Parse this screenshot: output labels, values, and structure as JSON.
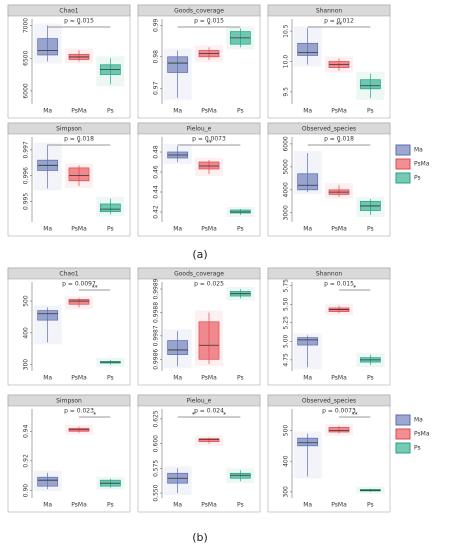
{
  "chart_data": [
    {
      "type": "box",
      "title": "Chao1",
      "annotation": "p = 0.015",
      "categories": [
        "Ma",
        "PsMa",
        "Ps"
      ],
      "colors": [
        "#5b6db0",
        "#e6444c",
        "#1ba584"
      ],
      "ylim": [
        5800,
        7100
      ],
      "yticks": [
        6000,
        6500,
        7000
      ],
      "boxes": [
        {
          "min": 6450,
          "q1": 6550,
          "median": 6620,
          "q3": 6800,
          "max": 7000
        },
        {
          "min": 6450,
          "q1": 6480,
          "median": 6520,
          "q3": 6560,
          "max": 6620
        },
        {
          "min": 6100,
          "q1": 6250,
          "median": 6330,
          "q3": 6400,
          "max": 6500
        }
      ],
      "significance": [
        {
          "label": "*",
          "from": 0,
          "to": 2
        }
      ]
    },
    {
      "type": "box",
      "title": "Goods_coverage",
      "annotation": "p = 0.015",
      "categories": [
        "Ma",
        "PsMa",
        "Ps"
      ],
      "colors": [
        "#5b6db0",
        "#e6444c",
        "#1ba584"
      ],
      "ylim": [
        0.965,
        0.992
      ],
      "yticks": [
        0.97,
        0.98,
        0.99
      ],
      "boxes": [
        {
          "min": 0.967,
          "q1": 0.975,
          "median": 0.978,
          "q3": 0.98,
          "max": 0.982
        },
        {
          "min": 0.979,
          "q1": 0.98,
          "median": 0.981,
          "q3": 0.982,
          "max": 0.983
        },
        {
          "min": 0.983,
          "q1": 0.984,
          "median": 0.986,
          "q3": 0.988,
          "max": 0.989
        }
      ],
      "significance": [
        {
          "label": "*",
          "from": 0,
          "to": 2
        }
      ]
    },
    {
      "type": "box",
      "title": "Shannon",
      "annotation": "p = 0.012",
      "categories": [
        "Ma",
        "PsMa",
        "Ps"
      ],
      "colors": [
        "#5b6db0",
        "#e6444c",
        "#1ba584"
      ],
      "ylim": [
        9.3,
        10.7
      ],
      "yticks": [
        9.5,
        {
          "value": 10,
          "label": "10.0"
        },
        10.5
      ],
      "boxes": [
        {
          "min": 9.95,
          "q1": 10.1,
          "median": 10.15,
          "q3": 10.3,
          "max": 10.55
        },
        {
          "min": 9.85,
          "q1": 9.9,
          "median": 9.95,
          "q3": 10.0,
          "max": 10.05
        },
        {
          "min": 9.4,
          "q1": 9.55,
          "median": 9.6,
          "q3": 9.7,
          "max": 9.8
        }
      ],
      "significance": [
        {
          "label": "**",
          "from": 0,
          "to": 2
        }
      ]
    },
    {
      "type": "box",
      "title": "Simpson",
      "annotation": "p = 0.018",
      "categories": [
        "Ma",
        "PsMa",
        "Ps"
      ],
      "colors": [
        "#5b6db0",
        "#e6444c",
        "#1ba584"
      ],
      "ylim": [
        0.9942,
        0.9975
      ],
      "yticks": [
        0.995,
        0.996,
        0.997
      ],
      "boxes": [
        {
          "min": 0.9955,
          "q1": 0.9962,
          "median": 0.9964,
          "q3": 0.9966,
          "max": 0.9972
        },
        {
          "min": 0.9956,
          "q1": 0.9958,
          "median": 0.996,
          "q3": 0.9963,
          "max": 0.9964
        },
        {
          "min": 0.9945,
          "q1": 0.9946,
          "median": 0.9947,
          "q3": 0.9949,
          "max": 0.9951
        }
      ],
      "significance": [
        {
          "label": "*",
          "from": 0,
          "to": 2
        }
      ]
    },
    {
      "type": "box",
      "title": "Pielou_e",
      "annotation": "p = 0.0073",
      "categories": [
        "Ma",
        "PsMa",
        "Ps"
      ],
      "colors": [
        "#5b6db0",
        "#e6444c",
        "#1ba584"
      ],
      "ylim": [
        0.41,
        0.495
      ],
      "yticks": [
        0.42,
        0.44,
        0.46,
        0.48
      ],
      "boxes": [
        {
          "min": 0.47,
          "q1": 0.474,
          "median": 0.477,
          "q3": 0.48,
          "max": 0.486
        },
        {
          "min": 0.458,
          "q1": 0.463,
          "median": 0.466,
          "q3": 0.47,
          "max": 0.472
        },
        {
          "min": 0.417,
          "q1": 0.419,
          "median": 0.42,
          "q3": 0.422,
          "max": 0.423
        }
      ],
      "significance": [
        {
          "label": "**",
          "from": 0,
          "to": 2
        }
      ]
    },
    {
      "type": "box",
      "title": "Observed_species",
      "annotation": "p = 0.018",
      "categories": [
        "Ma",
        "PsMa",
        "Ps"
      ],
      "colors": [
        "#5b6db0",
        "#e6444c",
        "#1ba584"
      ],
      "ylim": [
        2600,
        6300
      ],
      "yticks": [
        3000,
        4000,
        5000,
        6000
      ],
      "boxes": [
        {
          "min": 3900,
          "q1": 4000,
          "median": 4200,
          "q3": 4700,
          "max": 5600
        },
        {
          "min": 3700,
          "q1": 3800,
          "median": 3900,
          "q3": 4000,
          "max": 4200
        },
        {
          "min": 2900,
          "q1": 3100,
          "median": 3300,
          "q3": 3500,
          "max": 3600
        }
      ],
      "significance": [
        {
          "label": "*",
          "from": 0,
          "to": 2
        }
      ]
    },
    {
      "type": "box",
      "title": "Chao1",
      "annotation": "p = 0.0097",
      "categories": [
        "Ma",
        "PsMa",
        "Ps"
      ],
      "colors": [
        "#5b6db0",
        "#e6444c",
        "#1ba584"
      ],
      "ylim": [
        280,
        560
      ],
      "yticks": [
        300,
        400,
        500
      ],
      "boxes": [
        {
          "min": 370,
          "q1": 440,
          "median": 460,
          "q3": 470,
          "max": 480
        },
        {
          "min": 480,
          "q1": 490,
          "median": 500,
          "q3": 505,
          "max": 510
        },
        {
          "min": 300,
          "q1": 305,
          "median": 308,
          "q3": 310,
          "max": 315
        }
      ],
      "significance": [
        {
          "label": "**",
          "from": 1,
          "to": 2
        }
      ]
    },
    {
      "type": "box",
      "title": "Goods_coverage",
      "annotation": "p = 0.025",
      "categories": [
        "Ma",
        "PsMa",
        "Ps"
      ],
      "colors": [
        "#5b6db0",
        "#e6444c",
        "#1ba584"
      ],
      "ylim": [
        0.99855,
        0.99893
      ],
      "yticks": [
        0.9986,
        0.9987,
        0.9988,
        0.9989
      ],
      "boxes": [
        {
          "min": 0.99857,
          "q1": 0.99862,
          "median": 0.99864,
          "q3": 0.99868,
          "max": 0.99872
        },
        {
          "min": 0.99858,
          "q1": 0.9986,
          "median": 0.99866,
          "q3": 0.99876,
          "max": 0.9988
        },
        {
          "min": 0.99886,
          "q1": 0.99887,
          "median": 0.99888,
          "q3": 0.99889,
          "max": 0.9989
        }
      ],
      "significance": []
    },
    {
      "type": "box",
      "title": "Shannon",
      "annotation": "p = 0.015",
      "categories": [
        "Ma",
        "PsMa",
        "Ps"
      ],
      "colors": [
        "#5b6db0",
        "#e6444c",
        "#1ba584"
      ],
      "ylim": [
        4.6,
        5.8
      ],
      "yticks": [
        4.75,
        {
          "value": 5,
          "label": "5.00"
        },
        5.25,
        {
          "value": 5.5,
          "label": "5.50"
        },
        5.75
      ],
      "boxes": [
        {
          "min": 4.65,
          "q1": 4.95,
          "median": 5.02,
          "q3": 5.05,
          "max": 5.08
        },
        {
          "min": 5.38,
          "q1": 5.4,
          "median": 5.43,
          "q3": 5.45,
          "max": 5.48
        },
        {
          "min": 4.68,
          "q1": 4.72,
          "median": 4.75,
          "q3": 4.78,
          "max": 4.82
        }
      ],
      "significance": [
        {
          "label": "*",
          "from": 1,
          "to": 2
        }
      ]
    },
    {
      "type": "box",
      "title": "Simpson",
      "annotation": "p = 0.023",
      "categories": [
        "Ma",
        "PsMa",
        "Ps"
      ],
      "colors": [
        "#5b6db0",
        "#e6444c",
        "#1ba584"
      ],
      "ylim": [
        0.895,
        0.955
      ],
      "yticks": [
        {
          "value": 0.9,
          "label": "0.90"
        },
        0.92,
        0.94
      ],
      "boxes": [
        {
          "min": 0.901,
          "q1": 0.903,
          "median": 0.907,
          "q3": 0.909,
          "max": 0.912
        },
        {
          "min": 0.939,
          "q1": 0.94,
          "median": 0.941,
          "q3": 0.942,
          "max": 0.943
        },
        {
          "min": 0.902,
          "q1": 0.903,
          "median": 0.905,
          "q3": 0.907,
          "max": 0.908
        }
      ],
      "significance": [
        {
          "label": "*",
          "from": 1,
          "to": 2
        }
      ]
    },
    {
      "type": "box",
      "title": "Pielou_e",
      "annotation": "p = 0.024",
      "categories": [
        "Ma",
        "PsMa",
        "Ps"
      ],
      "colors": [
        "#5b6db0",
        "#e6444c",
        "#1ba584"
      ],
      "ylim": [
        0.545,
        0.635
      ],
      "yticks": [
        {
          "value": 0.55,
          "label": "0.550"
        },
        0.575,
        {
          "value": 0.6,
          "label": "0.600"
        },
        0.625
      ],
      "boxes": [
        {
          "min": 0.55,
          "q1": 0.56,
          "median": 0.565,
          "q3": 0.57,
          "max": 0.575
        },
        {
          "min": 0.6,
          "q1": 0.602,
          "median": 0.604,
          "q3": 0.605,
          "max": 0.606
        },
        {
          "min": 0.562,
          "q1": 0.565,
          "median": 0.568,
          "q3": 0.57,
          "max": 0.573
        }
      ],
      "significance": [
        {
          "label": "*",
          "from": 0,
          "to": 1
        },
        {
          "label": "*",
          "from": 1,
          "to": 2
        }
      ]
    },
    {
      "type": "box",
      "title": "Observed_species",
      "annotation": "p = 0.0073",
      "categories": [
        "Ma",
        "PsMa",
        "Ps"
      ],
      "colors": [
        "#5b6db0",
        "#e6444c",
        "#1ba584"
      ],
      "ylim": [
        280,
        570
      ],
      "yticks": [
        300,
        400,
        500
      ],
      "boxes": [
        {
          "min": 350,
          "q1": 450,
          "median": 460,
          "q3": 475,
          "max": 490
        },
        {
          "min": 490,
          "q1": 495,
          "median": 500,
          "q3": 510,
          "max": 515
        },
        {
          "min": 300,
          "q1": 303,
          "median": 305,
          "q3": 308,
          "max": 310
        }
      ],
      "significance": [
        {
          "label": "**",
          "from": 1,
          "to": 2
        }
      ]
    }
  ],
  "figure_labels": [
    "(a)",
    "(b)"
  ],
  "legends": [
    {
      "entries": [
        "Ma",
        "PsMa",
        "Ps"
      ],
      "colors": [
        "#5b6db0",
        "#e6444c",
        "#1ba584"
      ]
    },
    {
      "entries": [
        "Ma",
        "PsMa",
        "Ps"
      ],
      "colors": [
        "#5b6db0",
        "#e6444c",
        "#1ba584"
      ]
    }
  ]
}
